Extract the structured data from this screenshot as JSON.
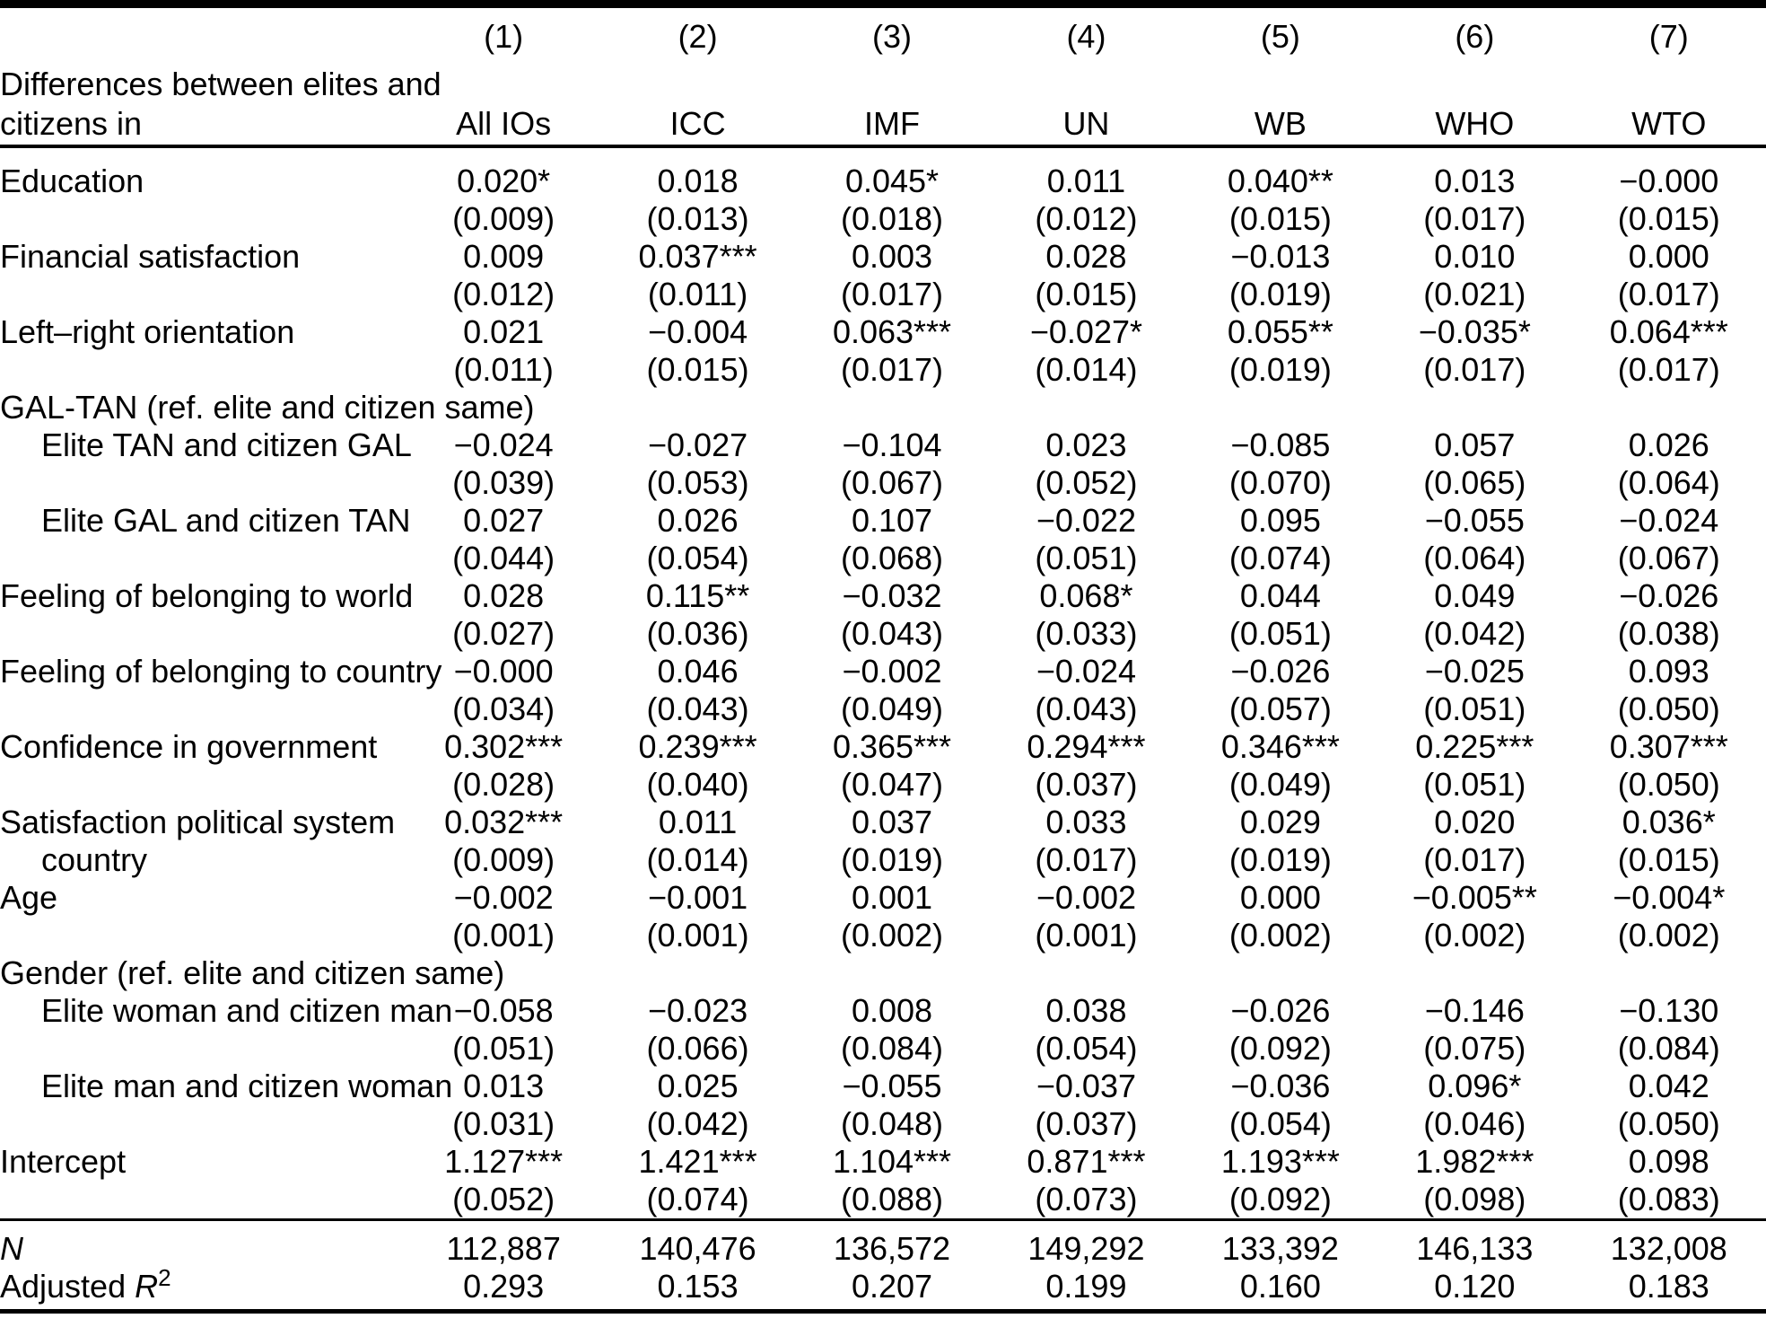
{
  "table": {
    "header": {
      "col_numbers": [
        "(1)",
        "(2)",
        "(3)",
        "(4)",
        "(5)",
        "(6)",
        "(7)"
      ],
      "label_line1": "Differences between elites and",
      "label_line2": "citizens in",
      "columns": [
        "All IOs",
        "ICC",
        "IMF",
        "UN",
        "WB",
        "WHO",
        "WTO"
      ]
    },
    "rows": [
      {
        "type": "coef",
        "label": "Education",
        "indent": false,
        "values": [
          "0.020*",
          "0.018",
          "0.045*",
          "0.011",
          "0.040**",
          "0.013",
          "−0.000"
        ],
        "se": [
          "(0.009)",
          "(0.013)",
          "(0.018)",
          "(0.012)",
          "(0.015)",
          "(0.017)",
          "(0.015)"
        ]
      },
      {
        "type": "coef",
        "label": "Financial satisfaction",
        "indent": false,
        "values": [
          "0.009",
          "0.037***",
          "0.003",
          "0.028",
          "−0.013",
          "0.010",
          "0.000"
        ],
        "se": [
          "(0.012)",
          "(0.011)",
          "(0.017)",
          "(0.015)",
          "(0.019)",
          "(0.021)",
          "(0.017)"
        ]
      },
      {
        "type": "coef",
        "label": "Left–right orientation",
        "indent": false,
        "values": [
          "0.021",
          "−0.004",
          "0.063***",
          "−0.027*",
          "0.055**",
          "−0.035*",
          "0.064***"
        ],
        "se": [
          "(0.011)",
          "(0.015)",
          "(0.017)",
          "(0.014)",
          "(0.019)",
          "(0.017)",
          "(0.017)"
        ]
      },
      {
        "type": "section",
        "label": "GAL-TAN (ref. elite and citizen same)"
      },
      {
        "type": "coef",
        "label": "Elite TAN and citizen GAL",
        "indent": true,
        "values": [
          "−0.024",
          "−0.027",
          "−0.104",
          "0.023",
          "−0.085",
          "0.057",
          "0.026"
        ],
        "se": [
          "(0.039)",
          "(0.053)",
          "(0.067)",
          "(0.052)",
          "(0.070)",
          "(0.065)",
          "(0.064)"
        ]
      },
      {
        "type": "coef",
        "label": "Elite GAL and citizen TAN",
        "indent": true,
        "values": [
          "0.027",
          "0.026",
          "0.107",
          "−0.022",
          "0.095",
          "−0.055",
          "−0.024"
        ],
        "se": [
          "(0.044)",
          "(0.054)",
          "(0.068)",
          "(0.051)",
          "(0.074)",
          "(0.064)",
          "(0.067)"
        ]
      },
      {
        "type": "coef",
        "label": "Feeling of belonging to world",
        "indent": false,
        "values": [
          "0.028",
          "0.115**",
          "−0.032",
          "0.068*",
          "0.044",
          "0.049",
          "−0.026"
        ],
        "se": [
          "(0.027)",
          "(0.036)",
          "(0.043)",
          "(0.033)",
          "(0.051)",
          "(0.042)",
          "(0.038)"
        ]
      },
      {
        "type": "coef",
        "label": "Feeling of belonging to country",
        "indent": false,
        "values": [
          "−0.000",
          "0.046",
          "−0.002",
          "−0.024",
          "−0.026",
          "−0.025",
          "0.093"
        ],
        "se": [
          "(0.034)",
          "(0.043)",
          "(0.049)",
          "(0.043)",
          "(0.057)",
          "(0.051)",
          "(0.050)"
        ]
      },
      {
        "type": "coef",
        "label": "Confidence in government",
        "indent": false,
        "values": [
          "0.302***",
          "0.239***",
          "0.365***",
          "0.294***",
          "0.346***",
          "0.225***",
          "0.307***"
        ],
        "se": [
          "(0.028)",
          "(0.040)",
          "(0.047)",
          "(0.037)",
          "(0.049)",
          "(0.051)",
          "(0.050)"
        ]
      },
      {
        "type": "coef",
        "label": "Satisfaction political system",
        "label2": "country",
        "indent": false,
        "values": [
          "0.032***",
          "0.011",
          "0.037",
          "0.033",
          "0.029",
          "0.020",
          "0.036*"
        ],
        "se": [
          "(0.009)",
          "(0.014)",
          "(0.019)",
          "(0.017)",
          "(0.019)",
          "(0.017)",
          "(0.015)"
        ]
      },
      {
        "type": "coef",
        "label": "Age",
        "indent": false,
        "values": [
          "−0.002",
          "−0.001",
          "0.001",
          "−0.002",
          "0.000",
          "−0.005**",
          "−0.004*"
        ],
        "se": [
          "(0.001)",
          "(0.001)",
          "(0.002)",
          "(0.001)",
          "(0.002)",
          "(0.002)",
          "(0.002)"
        ]
      },
      {
        "type": "section",
        "label": "Gender (ref. elite and citizen same)"
      },
      {
        "type": "coef",
        "label": "Elite woman and citizen man",
        "indent": true,
        "values": [
          "−0.058",
          "−0.023",
          "0.008",
          "0.038",
          "−0.026",
          "−0.146",
          "−0.130"
        ],
        "se": [
          "(0.051)",
          "(0.066)",
          "(0.084)",
          "(0.054)",
          "(0.092)",
          "(0.075)",
          "(0.084)"
        ]
      },
      {
        "type": "coef",
        "label": "Elite man and citizen woman",
        "indent": true,
        "values": [
          "0.013",
          "0.025",
          "−0.055",
          "−0.037",
          "−0.036",
          "0.096*",
          "0.042"
        ],
        "se": [
          "(0.031)",
          "(0.042)",
          "(0.048)",
          "(0.037)",
          "(0.054)",
          "(0.046)",
          "(0.050)"
        ]
      },
      {
        "type": "coef",
        "label": "Intercept",
        "indent": false,
        "rule_after": true,
        "values": [
          "1.127***",
          "1.421***",
          "1.104***",
          "0.871***",
          "1.193***",
          "1.982***",
          "0.098"
        ],
        "se": [
          "(0.052)",
          "(0.074)",
          "(0.088)",
          "(0.073)",
          "(0.092)",
          "(0.098)",
          "(0.083)"
        ]
      }
    ],
    "stats": [
      {
        "label": "",
        "math": "N",
        "sup": "",
        "values": [
          "112,887",
          "140,476",
          "136,572",
          "149,292",
          "133,392",
          "146,133",
          "132,008"
        ]
      },
      {
        "label": "Adjusted ",
        "math": "R",
        "sup": "2",
        "values": [
          "0.293",
          "0.153",
          "0.207",
          "0.199",
          "0.160",
          "0.120",
          "0.183"
        ]
      }
    ]
  }
}
